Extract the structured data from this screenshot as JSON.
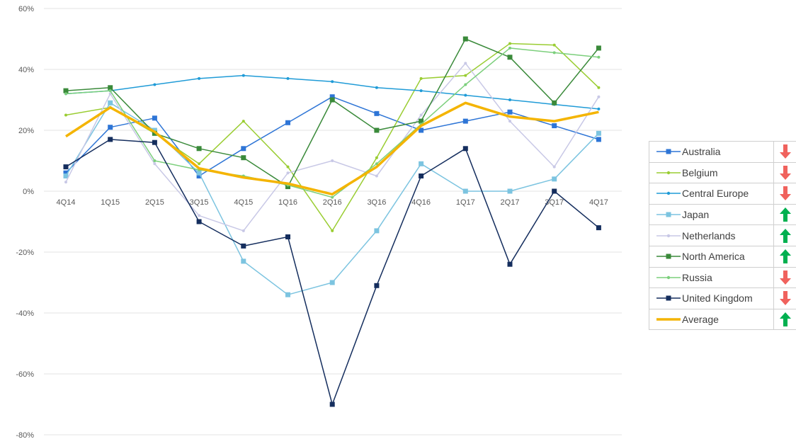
{
  "chart_data": {
    "type": "line",
    "title": "",
    "xlabel": "",
    "ylabel": "",
    "categories": [
      "4Q14",
      "1Q15",
      "2Q15",
      "3Q15",
      "4Q15",
      "1Q16",
      "2Q16",
      "3Q16",
      "4Q16",
      "1Q17",
      "2Q17",
      "3Q17",
      "4Q17"
    ],
    "y_ticks": [
      60,
      40,
      20,
      0,
      -20,
      -40,
      -60,
      -80
    ],
    "y_tick_labels": [
      "60%",
      "40%",
      "20%",
      "0%",
      "-20%",
      "-40%",
      "-60%",
      "-80%"
    ],
    "ylim": [
      -80,
      60
    ],
    "grid": true,
    "legend_position": "right",
    "series": [
      {
        "name": "Australia",
        "color": "#2e75d6",
        "marker": "square",
        "trend": "down",
        "values": [
          6,
          21,
          24,
          5,
          14,
          22.5,
          31,
          25.5,
          20,
          23,
          26,
          21.5,
          17
        ]
      },
      {
        "name": "Belgium",
        "color": "#9acd32",
        "marker": "dot",
        "trend": "down",
        "values": [
          25,
          27.5,
          19,
          9,
          23,
          8,
          -13,
          11,
          37,
          38,
          48.5,
          48,
          34
        ]
      },
      {
        "name": "Central Europe",
        "color": "#1f9bd7",
        "marker": "dot",
        "trend": "down",
        "values": [
          32,
          33,
          35,
          37,
          38,
          37,
          36,
          34,
          33,
          31.5,
          30,
          28.5,
          27
        ]
      },
      {
        "name": "Japan",
        "color": "#7cc4e0",
        "marker": "square",
        "trend": "up",
        "values": [
          5,
          29,
          20,
          6,
          -23,
          -34,
          -30,
          -13,
          9,
          0,
          0,
          4,
          19
        ]
      },
      {
        "name": "Netherlands",
        "color": "#c8c8e6",
        "marker": "dot",
        "trend": "up",
        "values": [
          3,
          32,
          9,
          -8,
          -13,
          6,
          10,
          5,
          25,
          42,
          23,
          8,
          31
        ]
      },
      {
        "name": "North America",
        "color": "#3a8a3a",
        "marker": "square",
        "trend": "up",
        "values": [
          33,
          34,
          19,
          14,
          11,
          1.5,
          30,
          20,
          23,
          50,
          44,
          29,
          47
        ]
      },
      {
        "name": "Russia",
        "color": "#7ccf7c",
        "marker": "dot",
        "trend": "down",
        "values": [
          32,
          33,
          10,
          7,
          5,
          2,
          -2,
          9,
          22,
          35,
          47,
          45.5,
          44
        ]
      },
      {
        "name": "United Kingdom",
        "color": "#152e5e",
        "marker": "square",
        "trend": "down",
        "values": [
          8,
          17,
          16,
          -10,
          -18,
          -15,
          -70,
          -31,
          5,
          14,
          -24,
          0,
          -12
        ]
      },
      {
        "name": "Average",
        "color": "#f4b400",
        "marker": "none",
        "trend": "up",
        "values": [
          18,
          27.5,
          19.5,
          7.5,
          4.5,
          2.5,
          -1,
          8,
          21.5,
          29,
          24.5,
          23,
          26
        ]
      }
    ],
    "trend_colors": {
      "up": "#00b050",
      "down": "#f0625d"
    }
  }
}
